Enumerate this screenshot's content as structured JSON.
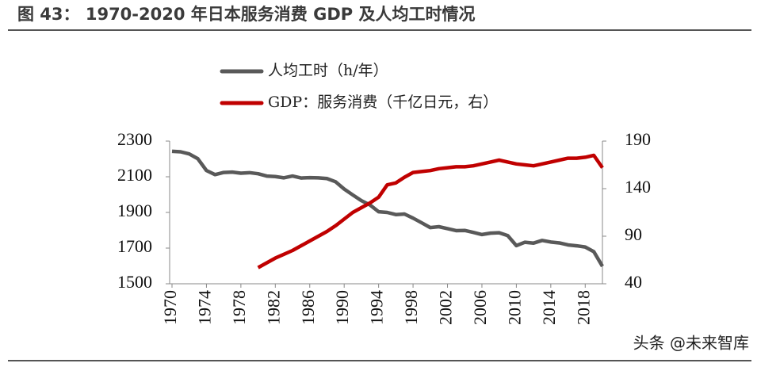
{
  "chart_data": {
    "type": "line",
    "title": "图 43： 1970-2020 年日本服务消费 GDP 及人均工时情况",
    "watermark": "头条 @未来智库",
    "x": [
      1970,
      1971,
      1972,
      1973,
      1974,
      1975,
      1976,
      1977,
      1978,
      1979,
      1980,
      1981,
      1982,
      1983,
      1984,
      1985,
      1986,
      1987,
      1988,
      1989,
      1990,
      1991,
      1992,
      1993,
      1994,
      1995,
      1996,
      1997,
      1998,
      1999,
      2000,
      2001,
      2002,
      2003,
      2004,
      2005,
      2006,
      2007,
      2008,
      2009,
      2010,
      2011,
      2012,
      2013,
      2014,
      2015,
      2016,
      2017,
      2018,
      2019,
      2020
    ],
    "xlim": [
      1970,
      2020
    ],
    "xticks": [
      1970,
      1974,
      1978,
      1982,
      1986,
      1990,
      1994,
      1998,
      2002,
      2006,
      2010,
      2014,
      2018
    ],
    "ylim": [
      1500,
      2300
    ],
    "yticks": [
      1500,
      1700,
      1900,
      2100,
      2300
    ],
    "y2lim": [
      40,
      190
    ],
    "y2ticks": [
      40,
      90,
      140,
      190
    ],
    "legend": "top-center",
    "series": [
      {
        "name": "人均工时（h/年）",
        "color": "#595959",
        "values": [
          2243,
          2240,
          2228,
          2201,
          2135,
          2112,
          2124,
          2126,
          2120,
          2123,
          2117,
          2104,
          2101,
          2094,
          2104,
          2093,
          2095,
          2094,
          2090,
          2072,
          2031,
          1998,
          1966,
          1942,
          1904,
          1900,
          1888,
          1891,
          1868,
          1842,
          1815,
          1820,
          1809,
          1798,
          1799,
          1788,
          1776,
          1784,
          1786,
          1770,
          1714,
          1733,
          1728,
          1743,
          1734,
          1729,
          1718,
          1713,
          1706,
          1680,
          1598
        ]
      },
      {
        "name": "GDP：服务消费（千亿日元，右）",
        "color": "#c00000",
        "axis": "y2",
        "values": [
          null,
          null,
          null,
          null,
          null,
          null,
          null,
          null,
          null,
          null,
          57,
          62,
          67,
          71,
          75,
          80,
          85,
          90,
          95,
          101,
          108,
          115,
          120,
          125,
          131,
          144,
          146,
          152,
          157,
          158,
          159,
          161,
          162,
          163,
          163,
          164,
          166,
          168,
          170,
          168,
          166,
          165,
          164,
          166,
          168,
          170,
          172,
          172,
          173,
          175,
          162
        ]
      }
    ]
  }
}
